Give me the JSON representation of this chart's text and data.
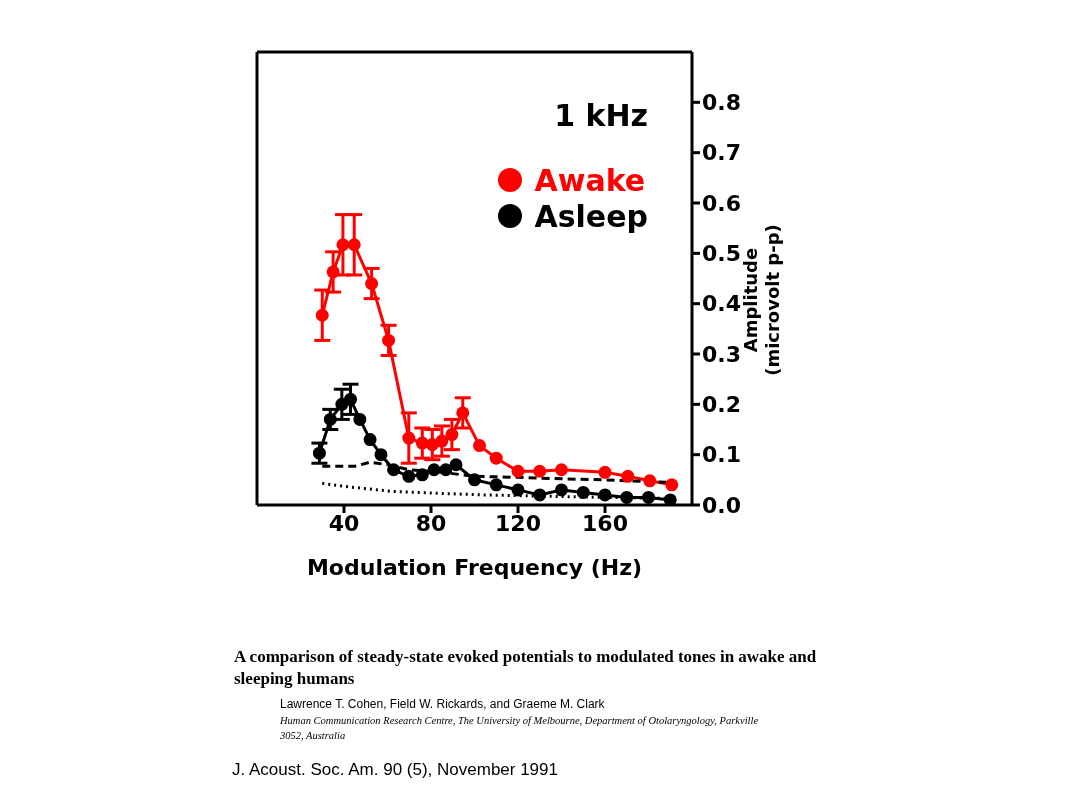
{
  "chart_data": {
    "type": "line",
    "title": "A comparison of steady-state evoked potentials to modulated tones in awake and sleeping humans",
    "xlabel": "Modulation Frequency (Hz)",
    "ylabel": "Amplitude (microvolt p-p)",
    "annotations": [
      "1 kHz",
      "Lawrence T.  Cohen, Field W.  Rickards, and Graeme M.  Clark",
      "Human Communication Research Centre, The University of Melbourne, Department of Otolaryngology, Parkville 3052, Australia",
      "J. Acoust. Soc. Am. 90 (5), November 1991"
    ],
    "xlim": [
      0,
      200
    ],
    "xticks": [
      40,
      80,
      120,
      160
    ],
    "ylim": [
      0,
      0.9
    ],
    "yticks": [
      {
        "value": 0,
        "label": "0.0"
      },
      0.1,
      0.2,
      0.3,
      0.4,
      0.5,
      0.6,
      0.7,
      0.8
    ],
    "legend": "top right",
    "marker": "circle",
    "line_style": "solid",
    "series": [
      {
        "name": "Awake",
        "color": "#ff0000",
        "x": [
          30,
          35,
          39.5,
          44.7,
          52.7,
          60.5,
          69.8,
          76,
          80.6,
          85,
          89.6,
          94.6,
          102.3,
          110,
          120,
          130,
          140,
          160,
          170.5,
          180.6,
          190.7
        ],
        "values": [
          0.377,
          0.463,
          0.517,
          0.517,
          0.44,
          0.327,
          0.133,
          0.123,
          0.12,
          0.127,
          0.14,
          0.183,
          0.118,
          0.093,
          0.067,
          0.067,
          0.07,
          0.065,
          0.057,
          0.048,
          0.04
        ],
        "errors": [
          0.05,
          0.04,
          0.06,
          0.06,
          0.03,
          0.03,
          0.05,
          0.03,
          0.03,
          0.03,
          0.03,
          0.03,
          null,
          null,
          null,
          null,
          null,
          null,
          null,
          null,
          null
        ]
      },
      {
        "name": "Asleep",
        "color": "#000000",
        "x": [
          28.7,
          33.7,
          39,
          43,
          47.3,
          52,
          57,
          62.8,
          69.8,
          76,
          81.4,
          86.8,
          91.5,
          100,
          110,
          120,
          130,
          140,
          150,
          160,
          170,
          180,
          190
        ],
        "values": [
          0.103,
          0.17,
          0.2,
          0.21,
          0.17,
          0.13,
          0.1,
          0.07,
          0.057,
          0.06,
          0.07,
          0.07,
          0.08,
          0.05,
          0.04,
          0.03,
          0.02,
          0.03,
          0.025,
          0.02,
          0.015,
          0.015,
          0.01
        ],
        "errors": [
          0.02,
          0.02,
          0.03,
          0.03,
          null,
          null,
          null,
          null,
          null,
          null,
          null,
          null,
          null,
          null,
          null,
          null,
          null,
          null,
          null,
          null,
          null,
          null,
          null
        ]
      },
      {
        "color": "#000000",
        "marker": "none",
        "line_style": "dashed",
        "x": [
          30,
          45,
          52,
          60,
          70,
          85,
          100,
          120,
          140,
          160,
          190
        ],
        "values": [
          0.077,
          0.077,
          0.085,
          0.08,
          0.07,
          0.065,
          0.057,
          0.055,
          0.052,
          0.05,
          0.045
        ]
      },
      {
        "color": "#000000",
        "marker": "none",
        "line_style": "dotted",
        "x": [
          30,
          40,
          62,
          85,
          104,
          150,
          190
        ],
        "values": [
          0.043,
          0.037,
          0.027,
          0.023,
          0.02,
          0.016,
          0.013
        ]
      }
    ]
  }
}
